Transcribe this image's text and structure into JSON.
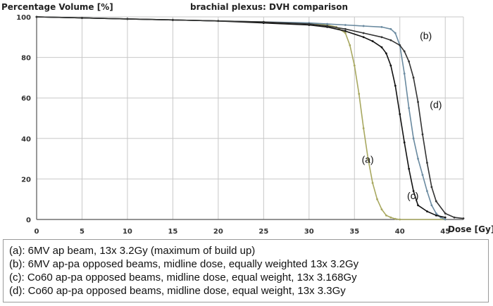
{
  "chart_data": {
    "type": "line",
    "title": "brachial plexus: DVH comparison",
    "xlabel": "Dose [Gy]",
    "ylabel": "Percentage Volume [%]",
    "xlim": [
      0,
      47
    ],
    "ylim": [
      0,
      100
    ],
    "xticks": [
      "0",
      "5",
      "10",
      "15",
      "20",
      "25",
      "30",
      "35",
      "40",
      "45"
    ],
    "yticks": [
      "0",
      "20",
      "40",
      "60",
      "80",
      "100"
    ],
    "grid": true,
    "series": [
      {
        "name": "(a)",
        "color": "#a8a860",
        "x": [
          0,
          5,
          10,
          15,
          20,
          25,
          30,
          32,
          33,
          34,
          34.5,
          35,
          35.5,
          36,
          36.5,
          37,
          37.5,
          38,
          38.5,
          39,
          39.5,
          40,
          45
        ],
        "y": [
          100,
          99.5,
          99,
          98.5,
          98,
          97.5,
          96.5,
          96,
          95,
          92,
          86,
          76,
          62,
          45,
          30,
          18,
          10,
          5,
          2,
          1,
          0.3,
          0,
          0
        ]
      },
      {
        "name": "(b)",
        "color": "#6a8aa0",
        "x": [
          0,
          5,
          10,
          15,
          20,
          25,
          30,
          32,
          34,
          36,
          38,
          39,
          39.5,
          40,
          40.5,
          41,
          41.5,
          42,
          42.5,
          43,
          43.5,
          44,
          44.5,
          45
        ],
        "y": [
          100,
          99.5,
          99,
          98.5,
          98,
          97.5,
          97,
          96.5,
          96,
          95.5,
          95,
          94,
          92,
          86,
          72,
          55,
          40,
          30,
          22,
          14,
          7,
          3,
          1,
          0
        ]
      },
      {
        "name": "(c)",
        "color": "#111111",
        "x": [
          0,
          5,
          10,
          15,
          20,
          25,
          30,
          32,
          34,
          36,
          37,
          38,
          38.5,
          39,
          39.5,
          40,
          40.5,
          41,
          41.5,
          42,
          43,
          44,
          45
        ],
        "y": [
          100,
          99.5,
          99,
          98.5,
          98,
          97,
          96,
          95,
          93,
          90,
          88,
          85,
          82,
          76,
          66,
          52,
          38,
          25,
          14,
          7,
          4,
          2,
          1
        ]
      },
      {
        "name": "(d)",
        "color": "#333333",
        "x": [
          0,
          5,
          10,
          15,
          20,
          25,
          30,
          32,
          34,
          36,
          38,
          39,
          40,
          40.5,
          41,
          41.5,
          42,
          42.5,
          43,
          43.5,
          44,
          45,
          46,
          47
        ],
        "y": [
          100,
          99.5,
          99,
          98.5,
          98,
          97.5,
          96.5,
          95.5,
          94,
          92,
          90,
          88.5,
          86,
          83,
          78,
          70,
          58,
          42,
          28,
          16,
          9,
          3,
          1,
          0.5
        ]
      }
    ],
    "annotations": [
      {
        "text": "(a)",
        "x": 35.8,
        "y": 28
      },
      {
        "text": "(b)",
        "x": 42.2,
        "y": 89
      },
      {
        "text": "(c)",
        "x": 40.8,
        "y": 10
      },
      {
        "text": "(d)",
        "x": 43.3,
        "y": 55
      }
    ]
  },
  "legend": {
    "lines": [
      "(a): 6MV ap beam, 13x 3.2Gy (maximum of build up)",
      "(b): 6MV ap-pa opposed beams, midline dose, equally weighted 13x 3.2Gy",
      "(c): Co60 ap-pa opposed beams, midline dose, equal weight, 13x 3.168Gy",
      "(d): Co60 ap-pa opposed beams, midline dose, equal weight, 13x 3.3Gy"
    ]
  }
}
